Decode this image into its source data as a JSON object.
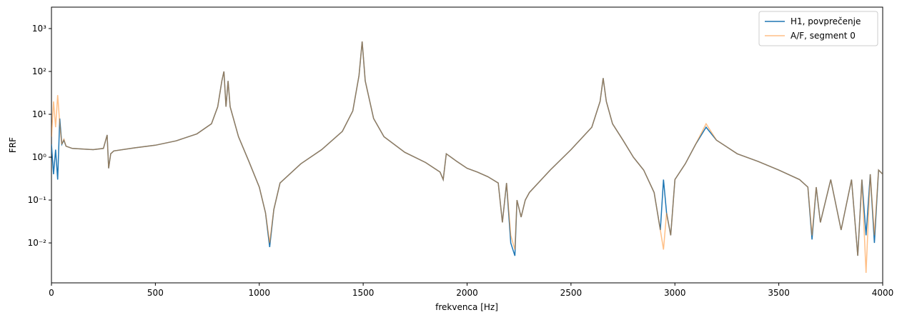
{
  "chart_data": {
    "type": "line",
    "x_label": "frekvenca [Hz]",
    "y_label": "FRF",
    "log_y": true,
    "legend": "upper right",
    "xlim": [
      0,
      4000
    ],
    "xticks": [
      0,
      500,
      1000,
      1500,
      2000,
      2500,
      3000,
      3500,
      4000
    ],
    "ylim": [
      0.00117,
      3162
    ],
    "yticks": [
      {
        "value": 0.01,
        "label": "10⁻²"
      },
      {
        "value": 0.1,
        "label": "10⁻¹"
      },
      {
        "value": 1,
        "label": "10⁰"
      },
      {
        "value": 10,
        "label": "10¹"
      },
      {
        "value": 100,
        "label": "10²"
      },
      {
        "value": 1000,
        "label": "10³"
      }
    ],
    "x": [
      0,
      10,
      20,
      30,
      40,
      50,
      60,
      70,
      100,
      150,
      200,
      250,
      268,
      275,
      285,
      300,
      400,
      500,
      600,
      700,
      770,
      800,
      820,
      830,
      840,
      850,
      860,
      900,
      950,
      1000,
      1030,
      1050,
      1070,
      1100,
      1200,
      1300,
      1400,
      1450,
      1480,
      1495,
      1510,
      1550,
      1600,
      1700,
      1800,
      1870,
      1885,
      1900,
      1950,
      2000,
      2050,
      2100,
      2150,
      2170,
      2190,
      2210,
      2230,
      2240,
      2260,
      2280,
      2300,
      2400,
      2500,
      2600,
      2640,
      2655,
      2670,
      2700,
      2750,
      2800,
      2850,
      2900,
      2930,
      2945,
      2960,
      2980,
      3000,
      3050,
      3100,
      3150,
      3200,
      3300,
      3400,
      3500,
      3600,
      3640,
      3660,
      3680,
      3700,
      3750,
      3800,
      3850,
      3880,
      3900,
      3920,
      3940,
      3960,
      3980,
      4000
    ],
    "series": [
      {
        "name": "H1, povprečenje",
        "color": "#1f77b4",
        "opacity": 1,
        "values": [
          2.0,
          0.4,
          1.5,
          0.3,
          8,
          2.0,
          2.5,
          1.8,
          1.6,
          1.55,
          1.5,
          1.6,
          3.3,
          0.55,
          1.2,
          1.4,
          1.65,
          1.9,
          2.4,
          3.5,
          6,
          15,
          60,
          100,
          15,
          60,
          15,
          3.0,
          0.8,
          0.2,
          0.05,
          0.008,
          0.06,
          0.25,
          0.7,
          1.5,
          4,
          12,
          80,
          500,
          60,
          8,
          3,
          1.3,
          0.75,
          0.45,
          0.3,
          1.2,
          0.8,
          0.55,
          0.45,
          0.35,
          0.25,
          0.03,
          0.25,
          0.01,
          0.005,
          0.1,
          0.04,
          0.1,
          0.15,
          0.5,
          1.5,
          5,
          20,
          70,
          20,
          6,
          2.5,
          1.0,
          0.5,
          0.15,
          0.02,
          0.3,
          0.05,
          0.015,
          0.3,
          0.7,
          2.0,
          5,
          2.5,
          1.2,
          0.8,
          0.5,
          0.3,
          0.2,
          0.012,
          0.2,
          0.03,
          0.3,
          0.02,
          0.3,
          0.005,
          0.3,
          0.015,
          0.4,
          0.01,
          0.5,
          0.4
        ]
      },
      {
        "name": "A/F, segment 0",
        "color": "#ff7f0e",
        "opacity": 0.5,
        "values": [
          3.0,
          20,
          5,
          28,
          6,
          2.0,
          2.6,
          1.8,
          1.6,
          1.55,
          1.5,
          1.6,
          3.3,
          0.55,
          1.2,
          1.4,
          1.65,
          1.9,
          2.4,
          3.5,
          6,
          15,
          60,
          100,
          15,
          60,
          15,
          3.0,
          0.8,
          0.2,
          0.05,
          0.01,
          0.06,
          0.25,
          0.7,
          1.5,
          4,
          12,
          80,
          500,
          60,
          8,
          3,
          1.3,
          0.75,
          0.45,
          0.3,
          1.2,
          0.8,
          0.55,
          0.45,
          0.35,
          0.25,
          0.03,
          0.25,
          0.015,
          0.007,
          0.1,
          0.04,
          0.1,
          0.15,
          0.5,
          1.5,
          5,
          20,
          70,
          20,
          6,
          2.5,
          1.0,
          0.5,
          0.15,
          0.02,
          0.007,
          0.05,
          0.015,
          0.3,
          0.7,
          2.0,
          6,
          2.5,
          1.2,
          0.8,
          0.5,
          0.3,
          0.2,
          0.015,
          0.2,
          0.03,
          0.3,
          0.02,
          0.3,
          0.005,
          0.3,
          0.002,
          0.4,
          0.015,
          0.5,
          0.4
        ]
      }
    ]
  }
}
